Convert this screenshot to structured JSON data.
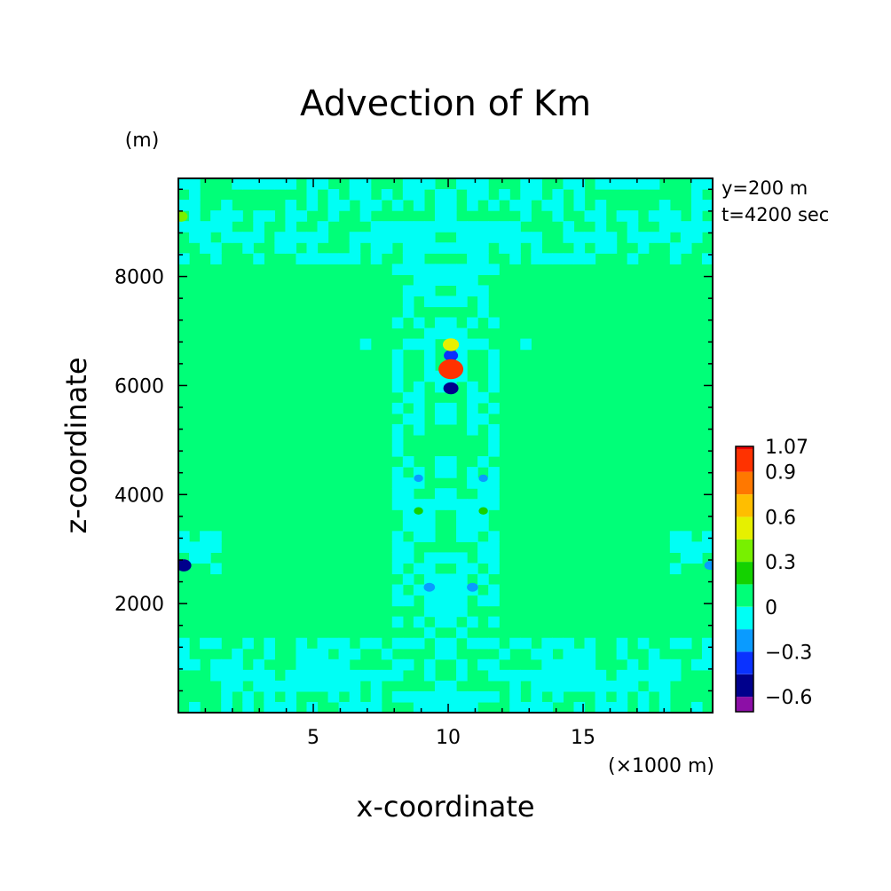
{
  "chart_data": {
    "type": "heatmap",
    "title": "Advection of Km",
    "xlabel": "x-coordinate",
    "ylabel": "z-coordinate",
    "x_unit": "(×1000 m)",
    "y_unit": "(m)",
    "xlim": [
      0,
      19.8
    ],
    "ylim": [
      0,
      9800
    ],
    "xticks": [
      5,
      10,
      15
    ],
    "yticks": [
      2000,
      4000,
      6000,
      8000
    ],
    "annotations": [
      "y=200 m",
      "t=4200 sec"
    ],
    "colorbar": {
      "levels": [
        -0.7,
        -0.6,
        -0.45,
        -0.3,
        -0.15,
        0,
        0.15,
        0.3,
        0.45,
        0.6,
        0.75,
        0.9,
        1.05,
        1.07
      ],
      "colors": [
        "#8c0fa6",
        "#00008c",
        "#0a32ff",
        "#0a9bff",
        "#00fff5",
        "#00ff78",
        "#14d200",
        "#78f000",
        "#e6f000",
        "#ffbe00",
        "#ff7800",
        "#ff3200",
        "#eb0000"
      ],
      "tick_labels": [
        "1.07",
        "0.9",
        "0.6",
        "0.3",
        "0",
        "−0.3",
        "−0.6"
      ],
      "tick_values": [
        1.07,
        0.9,
        0.6,
        0.3,
        0,
        -0.3,
        -0.6
      ]
    },
    "background_value": 0.05,
    "features": [
      {
        "x": 10.1,
        "z": 6550,
        "value": -0.45
      },
      {
        "x": 10.1,
        "z": 6300,
        "value": 1.0
      },
      {
        "x": 10.1,
        "z": 6750,
        "value": 0.55
      },
      {
        "x": 10.1,
        "z": 5950,
        "value": -0.5
      },
      {
        "x": 9.3,
        "z": 2300,
        "value": -0.3
      },
      {
        "x": 10.9,
        "z": 2300,
        "value": -0.3
      },
      {
        "x": 8.9,
        "z": 4300,
        "value": -0.2
      },
      {
        "x": 11.3,
        "z": 4300,
        "value": -0.2
      },
      {
        "x": 0.2,
        "z": 2700,
        "value": -0.5
      },
      {
        "x": 19.7,
        "z": 2700,
        "value": -0.3
      },
      {
        "x": 0.1,
        "z": 9100,
        "value": 0.4
      },
      {
        "x": 8.9,
        "z": 3700,
        "value": 0.2
      },
      {
        "x": 11.3,
        "z": 3700,
        "value": 0.2
      }
    ]
  }
}
